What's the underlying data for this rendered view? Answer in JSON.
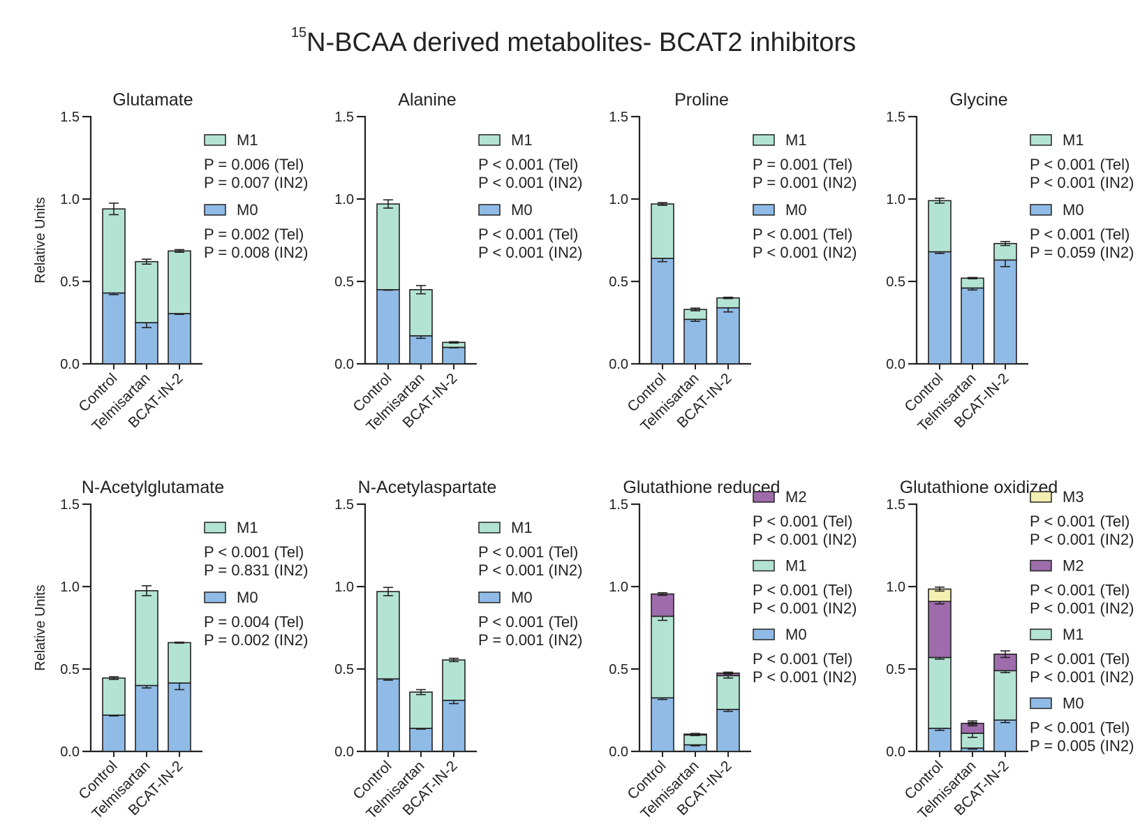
{
  "title_sup": "15",
  "title_main": "N-BCAA derived metabolites- BCAT2 inhibitors",
  "colors": {
    "M0": "#8fbbe6",
    "M1": "#b3e3d3",
    "M2": "#9e6cab",
    "M3": "#f3efb0",
    "axis": "#222222"
  },
  "chart_data": [
    {
      "type": "bar",
      "stacked": true,
      "title": "Glutamate",
      "ylabel": "Relative Units",
      "ylim": [
        0,
        1.5
      ],
      "yticks": [
        "0.0",
        "0.5",
        "1.0",
        "1.5"
      ],
      "categories": [
        "Control",
        "Telmisartan",
        "BCAT-IN-2"
      ],
      "series": [
        {
          "name": "M0",
          "values": [
            0.43,
            0.25,
            0.305
          ],
          "err": [
            0.01,
            0.03,
            0.005
          ]
        },
        {
          "name": "M1",
          "values": [
            0.51,
            0.37,
            0.38
          ],
          "err": [
            0.035,
            0.015,
            0.008
          ]
        }
      ],
      "legend": [
        {
          "name": "M1",
          "pvals": [
            "P = 0.006 (Tel)",
            "P = 0.007 (IN2)"
          ]
        },
        {
          "name": "M0",
          "pvals": [
            "P = 0.002 (Tel)",
            "P = 0.008 (IN2)"
          ]
        }
      ]
    },
    {
      "type": "bar",
      "stacked": true,
      "title": "Alanine",
      "ylabel": "",
      "ylim": [
        0,
        1.5
      ],
      "yticks": [
        "0.0",
        "0.5",
        "1.0",
        "1.5"
      ],
      "categories": [
        "Control",
        "Telmisartan",
        "BCAT-IN-2"
      ],
      "series": [
        {
          "name": "M0",
          "values": [
            0.45,
            0.17,
            0.1
          ],
          "err": [
            0.003,
            0.015,
            0.003
          ]
        },
        {
          "name": "M1",
          "values": [
            0.52,
            0.28,
            0.03
          ],
          "err": [
            0.025,
            0.025,
            0.004
          ]
        }
      ],
      "legend": [
        {
          "name": "M1",
          "pvals": [
            "P < 0.001 (Tel)",
            "P < 0.001 (IN2)"
          ]
        },
        {
          "name": "M0",
          "pvals": [
            "P < 0.001 (Tel)",
            "P < 0.001 (IN2)"
          ]
        }
      ]
    },
    {
      "type": "bar",
      "stacked": true,
      "title": "Proline",
      "ylabel": "",
      "ylim": [
        0,
        1.5
      ],
      "yticks": [
        "0.0",
        "0.5",
        "1.0",
        "1.5"
      ],
      "categories": [
        "Control",
        "Telmisartan",
        "BCAT-IN-2"
      ],
      "series": [
        {
          "name": "M0",
          "values": [
            0.64,
            0.27,
            0.34
          ],
          "err": [
            0.02,
            0.012,
            0.025
          ]
        },
        {
          "name": "M1",
          "values": [
            0.33,
            0.06,
            0.06
          ],
          "err": [
            0.008,
            0.008,
            0.004
          ]
        }
      ],
      "legend": [
        {
          "name": "M1",
          "pvals": [
            "P = 0.001 (Tel)",
            "P = 0.001 (IN2)"
          ]
        },
        {
          "name": "M0",
          "pvals": [
            "P < 0.001 (Tel)",
            "P < 0.001 (IN2)"
          ]
        }
      ]
    },
    {
      "type": "bar",
      "stacked": true,
      "title": "Glycine",
      "ylabel": "",
      "ylim": [
        0,
        1.5
      ],
      "yticks": [
        "0.0",
        "0.5",
        "1.0",
        "1.5"
      ],
      "categories": [
        "Control",
        "Telmisartan",
        "BCAT-IN-2"
      ],
      "series": [
        {
          "name": "M0",
          "values": [
            0.68,
            0.46,
            0.63
          ],
          "err": [
            0.01,
            0.012,
            0.04
          ]
        },
        {
          "name": "M1",
          "values": [
            0.31,
            0.06,
            0.1
          ],
          "err": [
            0.015,
            0.004,
            0.012
          ]
        }
      ],
      "legend": [
        {
          "name": "M1",
          "pvals": [
            "P < 0.001 (Tel)",
            "P < 0.001 (IN2)"
          ]
        },
        {
          "name": "M0",
          "pvals": [
            "P < 0.001 (Tel)",
            "P = 0.059 (IN2)"
          ]
        }
      ]
    },
    {
      "type": "bar",
      "stacked": true,
      "title": "N-Acetylglutamate",
      "ylabel": "Relative Units",
      "ylim": [
        0,
        1.5
      ],
      "yticks": [
        "0.0",
        "0.5",
        "1.0",
        "1.5"
      ],
      "categories": [
        "Control",
        "Telmisartan",
        "BCAT-IN-2"
      ],
      "series": [
        {
          "name": "M0",
          "values": [
            0.22,
            0.4,
            0.415
          ],
          "err": [
            0.005,
            0.015,
            0.04
          ]
        },
        {
          "name": "M1",
          "values": [
            0.225,
            0.575,
            0.245
          ],
          "err": [
            0.008,
            0.03,
            0.003
          ]
        }
      ],
      "legend": [
        {
          "name": "M1",
          "pvals": [
            "P < 0.001 (Tel)",
            "P = 0.831 (IN2)"
          ]
        },
        {
          "name": "M0",
          "pvals": [
            "P = 0.004 (Tel)",
            "P = 0.002 (IN2)"
          ]
        }
      ]
    },
    {
      "type": "bar",
      "stacked": true,
      "title": "N-Acetylaspartate",
      "ylabel": "",
      "ylim": [
        0,
        1.5
      ],
      "yticks": [
        "0.0",
        "0.5",
        "1.0",
        "1.5"
      ],
      "categories": [
        "Control",
        "Telmisartan",
        "BCAT-IN-2"
      ],
      "series": [
        {
          "name": "M0",
          "values": [
            0.44,
            0.14,
            0.31
          ],
          "err": [
            0.008,
            0.005,
            0.02
          ]
        },
        {
          "name": "M1",
          "values": [
            0.53,
            0.22,
            0.245
          ],
          "err": [
            0.025,
            0.015,
            0.01
          ]
        }
      ],
      "legend": [
        {
          "name": "M1",
          "pvals": [
            "P < 0.001 (Tel)",
            "P < 0.001 (IN2)"
          ]
        },
        {
          "name": "M0",
          "pvals": [
            "P < 0.001 (Tel)",
            "P = 0.001 (IN2)"
          ]
        }
      ]
    },
    {
      "type": "bar",
      "stacked": true,
      "title": "Glutathione reduced",
      "ylabel": "",
      "ylim": [
        0,
        1.5
      ],
      "yticks": [
        "0.0",
        "0.5",
        "1.0",
        "1.5"
      ],
      "categories": [
        "Control",
        "Telmisartan",
        "BCAT-IN-2"
      ],
      "series": [
        {
          "name": "M0",
          "values": [
            0.325,
            0.04,
            0.255
          ],
          "err": [
            0.01,
            0.006,
            0.012
          ]
        },
        {
          "name": "M1",
          "values": [
            0.495,
            0.06,
            0.205
          ],
          "err": [
            0.025,
            0.004,
            0.015
          ]
        },
        {
          "name": "M2",
          "values": [
            0.135,
            0.005,
            0.015
          ],
          "err": [
            0.008,
            0.004,
            0.006
          ]
        }
      ],
      "legend": [
        {
          "name": "M2",
          "pvals": [
            "P < 0.001 (Tel)",
            "P < 0.001 (IN2)"
          ]
        },
        {
          "name": "M1",
          "pvals": [
            "P < 0.001 (Tel)",
            "P < 0.001 (IN2)"
          ]
        },
        {
          "name": "M0",
          "pvals": [
            "P < 0.001 (Tel)",
            "P < 0.001 (IN2)"
          ]
        }
      ]
    },
    {
      "type": "bar",
      "stacked": true,
      "title": "Glutathione oxidized",
      "ylabel": "",
      "ylim": [
        0,
        1.5
      ],
      "yticks": [
        "0.0",
        "0.5",
        "1.0",
        "1.5"
      ],
      "categories": [
        "Control",
        "Telmisartan",
        "BCAT-IN-2"
      ],
      "series": [
        {
          "name": "M0",
          "values": [
            0.14,
            0.02,
            0.19
          ],
          "err": [
            0.012,
            0.006,
            0.015
          ]
        },
        {
          "name": "M1",
          "values": [
            0.43,
            0.09,
            0.3
          ],
          "err": [
            0.01,
            0.025,
            0.012
          ]
        },
        {
          "name": "M2",
          "values": [
            0.34,
            0.06,
            0.1
          ],
          "err": [
            0.015,
            0.015,
            0.02
          ]
        },
        {
          "name": "M3",
          "values": [
            0.075,
            0.0,
            0.0
          ],
          "err": [
            0.012,
            0.005,
            0.0
          ]
        }
      ],
      "legend": [
        {
          "name": "M3",
          "pvals": [
            "P < 0.001 (Tel)",
            "P < 0.001 (IN2)"
          ]
        },
        {
          "name": "M2",
          "pvals": [
            "P < 0.001 (Tel)",
            "P < 0.001 (IN2)"
          ]
        },
        {
          "name": "M1",
          "pvals": [
            "P < 0.001 (Tel)",
            "P < 0.001 (IN2)"
          ]
        },
        {
          "name": "M0",
          "pvals": [
            "P < 0.001 (Tel)",
            "P = 0.005 (IN2)"
          ]
        }
      ]
    }
  ]
}
